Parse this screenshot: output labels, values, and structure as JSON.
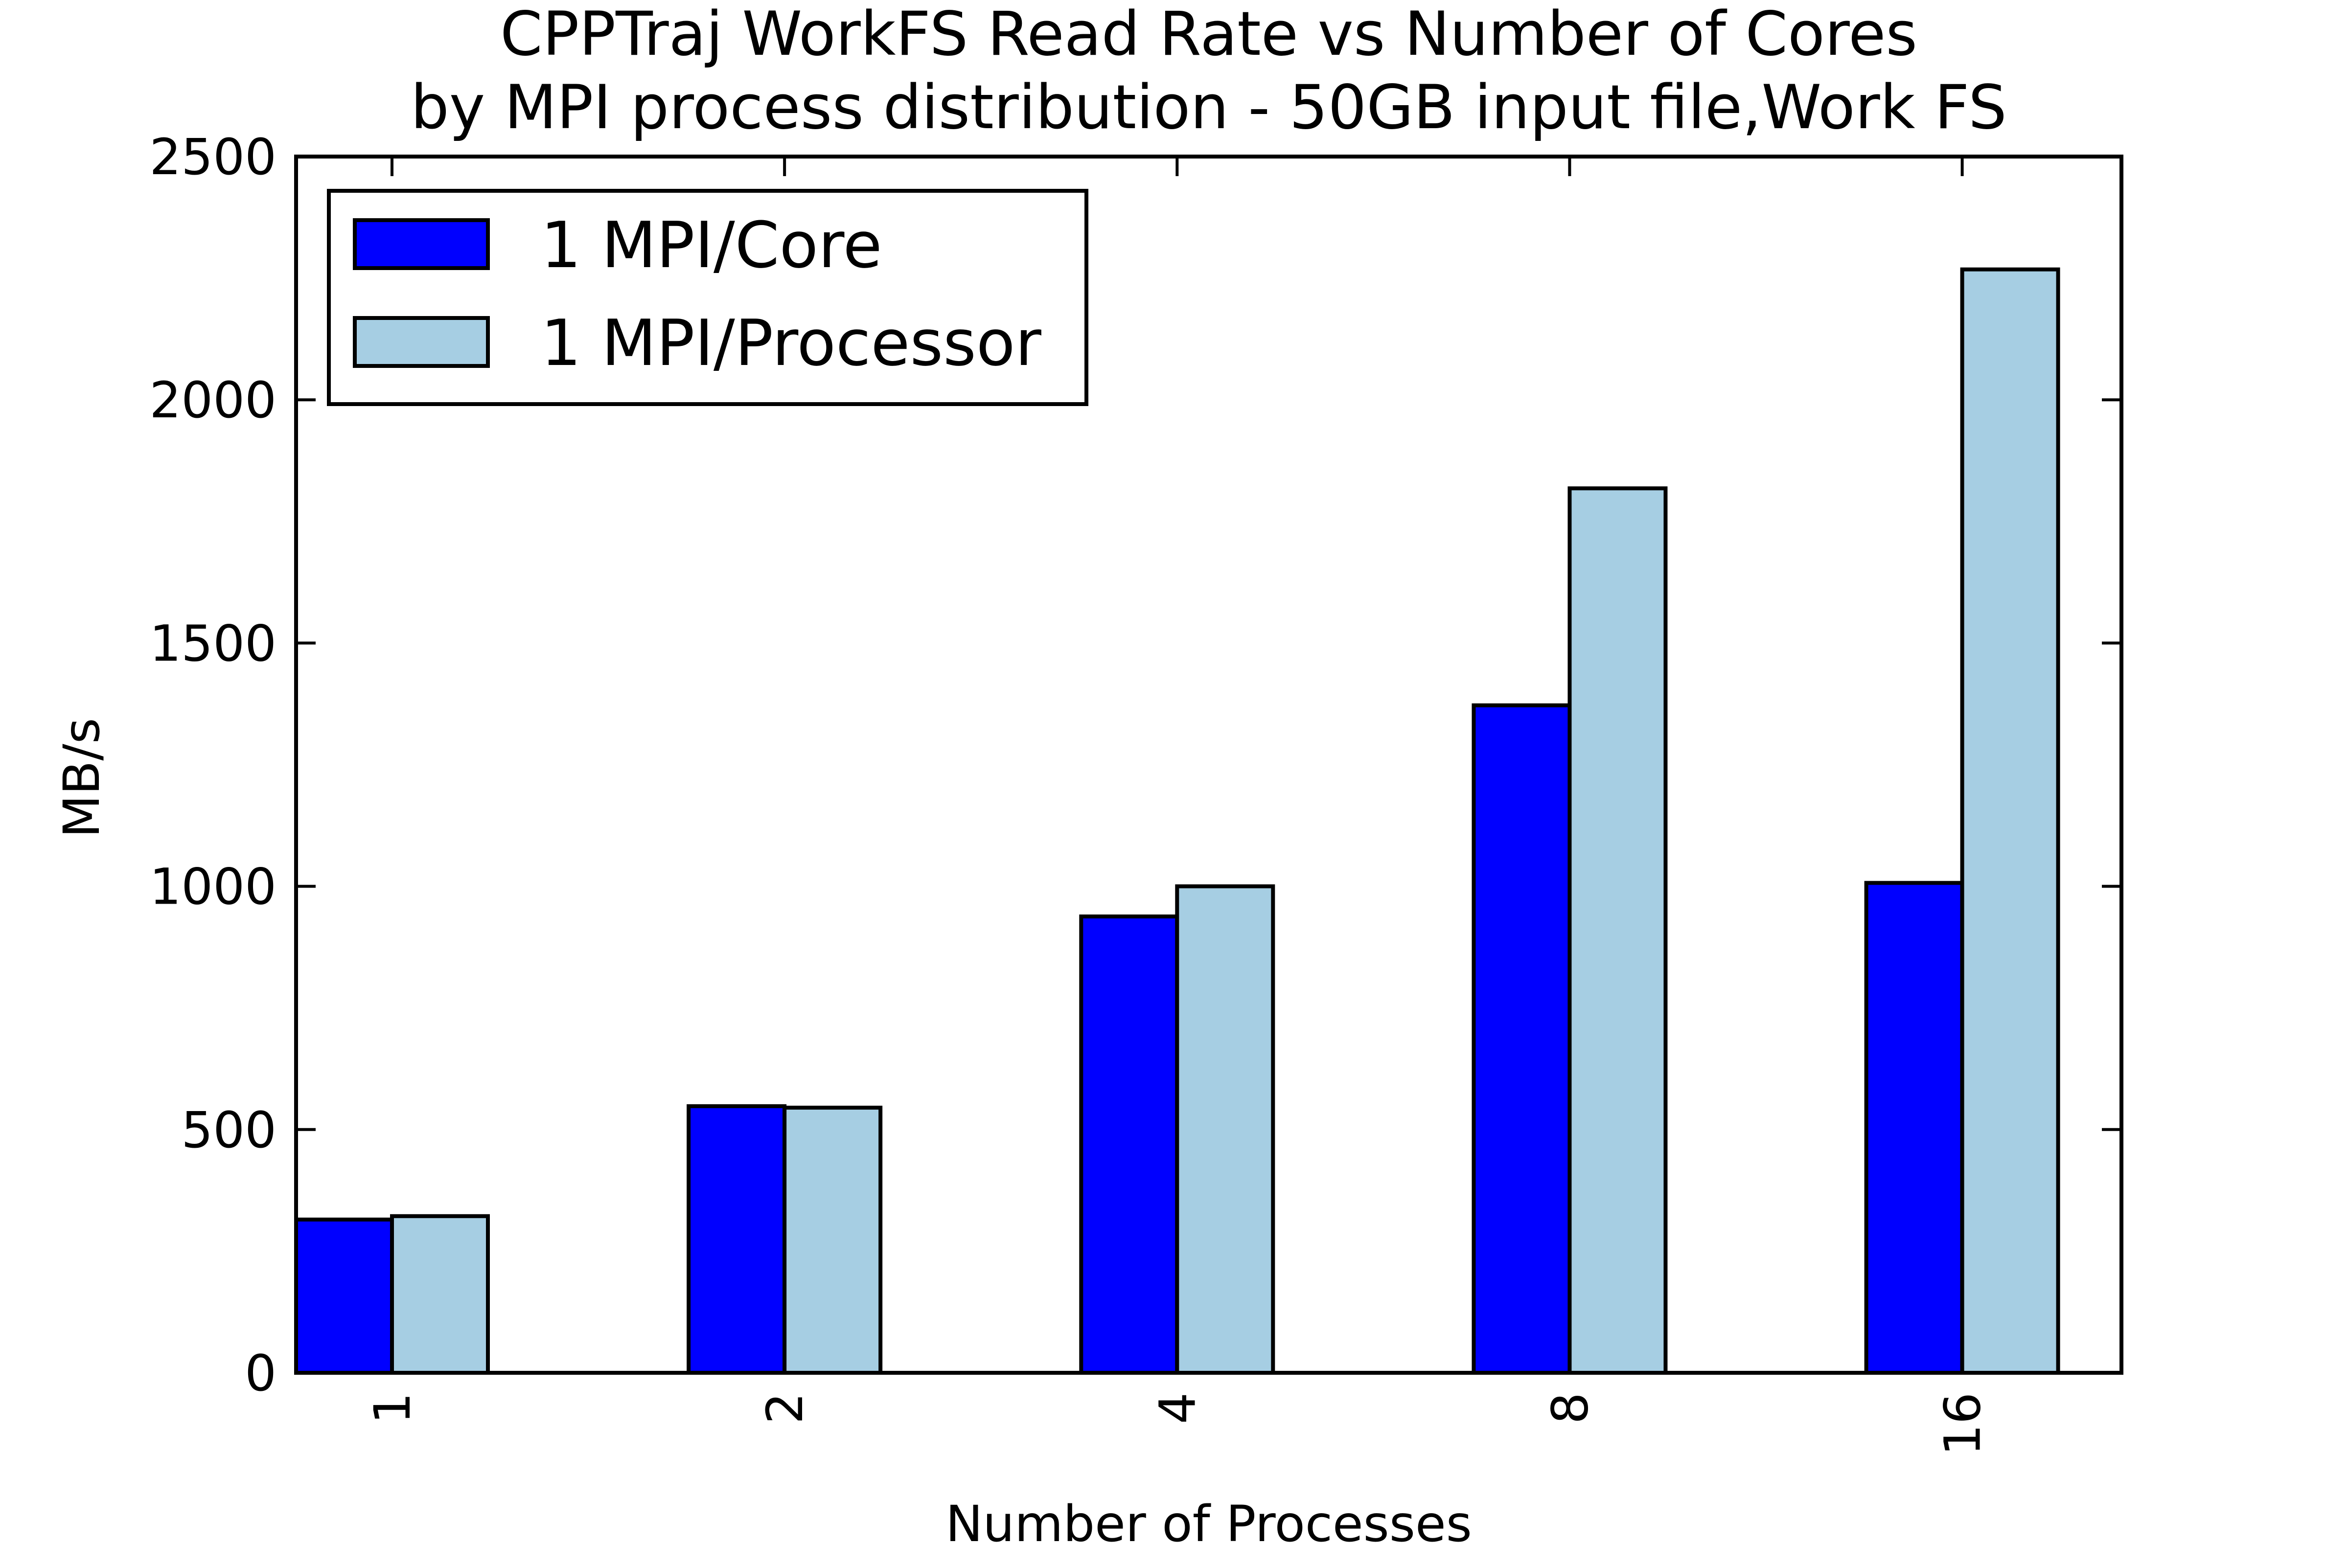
{
  "chart_data": {
    "type": "bar",
    "title": "CPPTraj WorkFS Read Rate vs Number of Cores",
    "subtitle": "by MPI process distribution - 50GB input file,Work FS",
    "xlabel": "Number of Processes",
    "ylabel": "MB/s",
    "categories": [
      "1",
      "2",
      "4",
      "8",
      "16"
    ],
    "series": [
      {
        "name": "1 MPI/Core",
        "values": [
          315,
          548,
          938,
          1372,
          1007
        ],
        "color": "#0000ff"
      },
      {
        "name": "1 MPI/Processor",
        "values": [
          322,
          545,
          1000,
          1818,
          2268
        ],
        "color": "#a6cee3"
      }
    ],
    "ylim": [
      0,
      2500
    ],
    "yticks": [
      0,
      500,
      1000,
      1500,
      2000,
      2500
    ],
    "ytick_labels": [
      "0",
      "500",
      "1000",
      "1500",
      "2000",
      "2500"
    ],
    "grid": false,
    "legend_position": "top-left",
    "xtick_rotation": "vertical"
  }
}
